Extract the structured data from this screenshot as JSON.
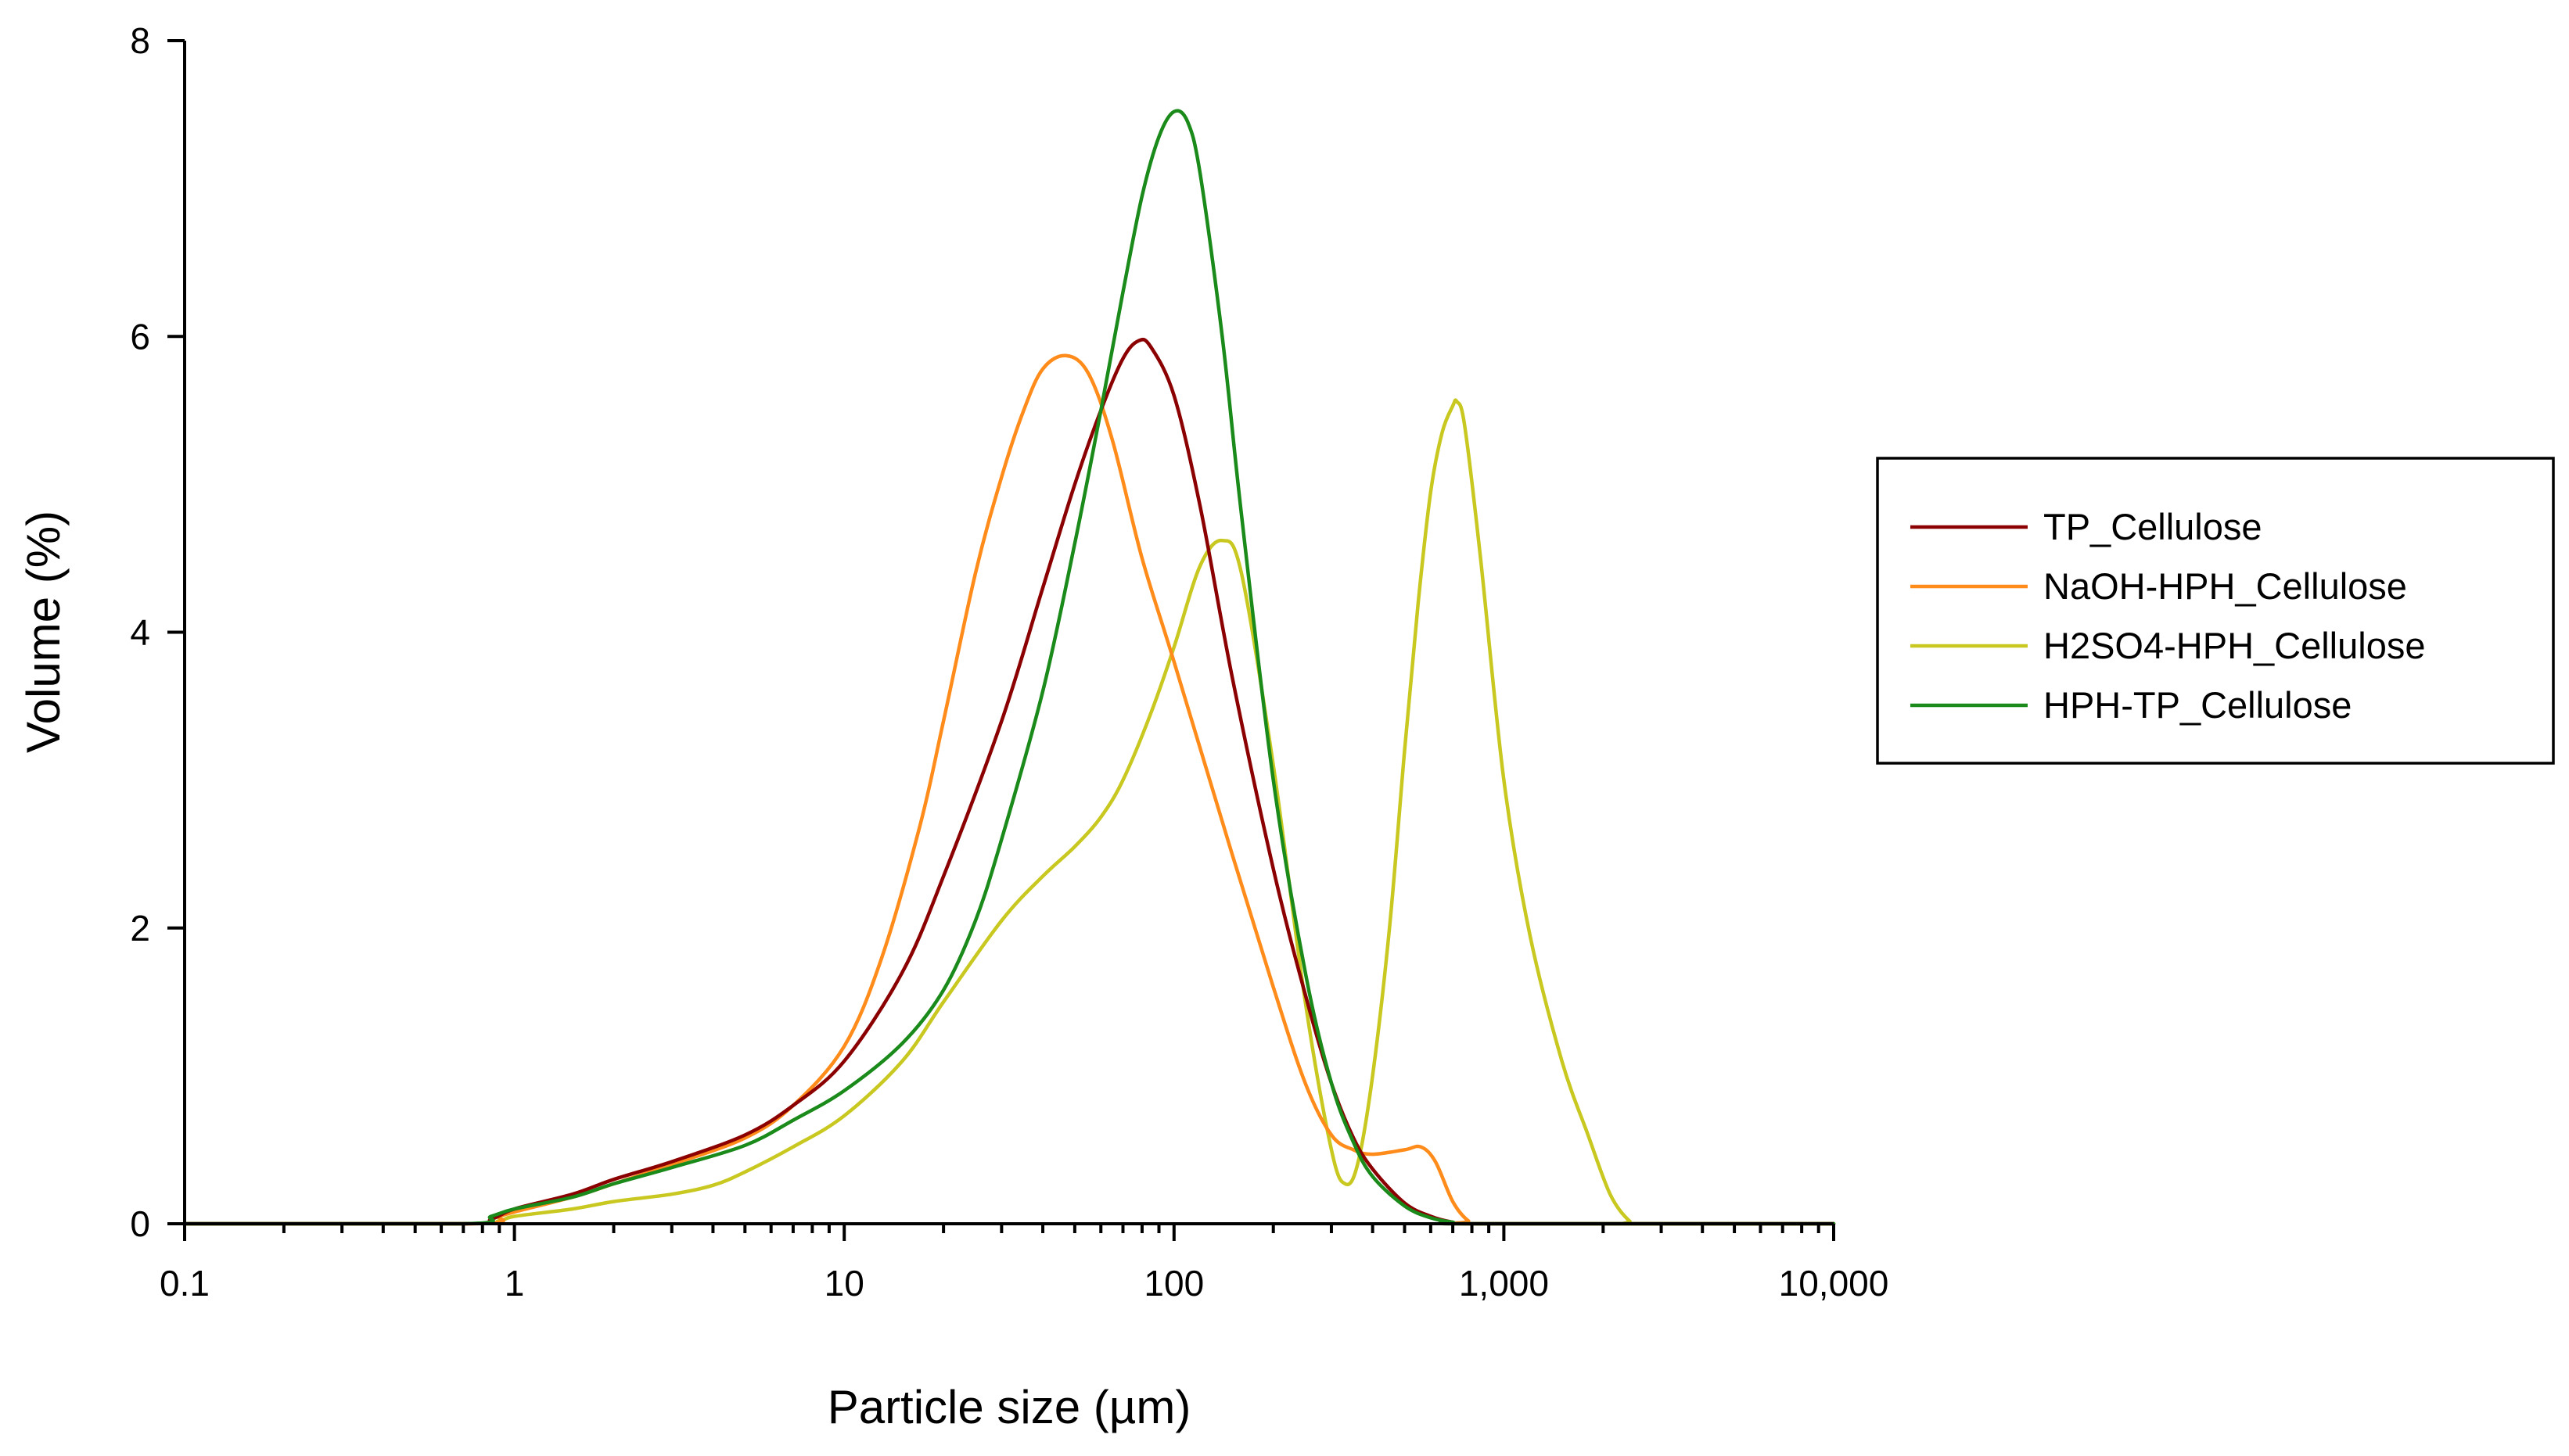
{
  "chart_data": {
    "type": "line",
    "xlabel": "Particle size (µm)",
    "ylabel": "Volume (%)",
    "xscale": "log",
    "xlim": [
      0.1,
      10000
    ],
    "ylim": [
      0,
      8
    ],
    "x_ticks": [
      {
        "value": 0.1,
        "label": "0.1"
      },
      {
        "value": 1,
        "label": "1"
      },
      {
        "value": 10,
        "label": "10"
      },
      {
        "value": 100,
        "label": "100"
      },
      {
        "value": 1000,
        "label": "1,000"
      },
      {
        "value": 10000,
        "label": "10,000"
      }
    ],
    "y_ticks": [
      {
        "value": 0,
        "label": "0"
      },
      {
        "value": 2,
        "label": "2"
      },
      {
        "value": 4,
        "label": "4"
      },
      {
        "value": 6,
        "label": "6"
      },
      {
        "value": 8,
        "label": "8"
      }
    ],
    "grid": false,
    "legend_position": "right",
    "series": [
      {
        "name": "TP_Cellulose",
        "color": "#8b0000",
        "points": [
          [
            0.1,
            0
          ],
          [
            0.7,
            0
          ],
          [
            0.85,
            0.03
          ],
          [
            1,
            0.1
          ],
          [
            1.5,
            0.2
          ],
          [
            2,
            0.3
          ],
          [
            3,
            0.42
          ],
          [
            5,
            0.6
          ],
          [
            7,
            0.8
          ],
          [
            10,
            1.1
          ],
          [
            15,
            1.7
          ],
          [
            20,
            2.35
          ],
          [
            30,
            3.4
          ],
          [
            40,
            4.3
          ],
          [
            50,
            5.0
          ],
          [
            60,
            5.5
          ],
          [
            70,
            5.85
          ],
          [
            78,
            5.97
          ],
          [
            85,
            5.93
          ],
          [
            100,
            5.6
          ],
          [
            120,
            4.85
          ],
          [
            150,
            3.7
          ],
          [
            200,
            2.4
          ],
          [
            250,
            1.55
          ],
          [
            300,
            0.95
          ],
          [
            350,
            0.58
          ],
          [
            400,
            0.37
          ],
          [
            500,
            0.14
          ],
          [
            600,
            0.05
          ],
          [
            700,
            0.01
          ],
          [
            800,
            0
          ],
          [
            10000,
            0
          ]
        ]
      },
      {
        "name": "NaOH-HPH_Cellulose",
        "color": "#ff8c1a",
        "points": [
          [
            0.1,
            0
          ],
          [
            0.75,
            0
          ],
          [
            0.9,
            0.05
          ],
          [
            1,
            0.08
          ],
          [
            1.5,
            0.18
          ],
          [
            2,
            0.27
          ],
          [
            3,
            0.4
          ],
          [
            5,
            0.58
          ],
          [
            7,
            0.8
          ],
          [
            10,
            1.2
          ],
          [
            13,
            1.8
          ],
          [
            17,
            2.7
          ],
          [
            20,
            3.4
          ],
          [
            25,
            4.4
          ],
          [
            30,
            5.05
          ],
          [
            35,
            5.5
          ],
          [
            40,
            5.78
          ],
          [
            47,
            5.87
          ],
          [
            55,
            5.75
          ],
          [
            65,
            5.3
          ],
          [
            80,
            4.5
          ],
          [
            100,
            3.8
          ],
          [
            150,
            2.5
          ],
          [
            200,
            1.6
          ],
          [
            250,
            0.95
          ],
          [
            300,
            0.6
          ],
          [
            350,
            0.5
          ],
          [
            400,
            0.47
          ],
          [
            500,
            0.5
          ],
          [
            560,
            0.52
          ],
          [
            620,
            0.42
          ],
          [
            700,
            0.15
          ],
          [
            780,
            0.02
          ],
          [
            850,
            0
          ],
          [
            10000,
            0
          ]
        ]
      },
      {
        "name": "H2SO4-HPH_Cellulose",
        "color": "#c8c820",
        "points": [
          [
            0.1,
            0
          ],
          [
            0.7,
            0
          ],
          [
            0.9,
            0.02
          ],
          [
            1,
            0.05
          ],
          [
            1.5,
            0.1
          ],
          [
            2,
            0.15
          ],
          [
            3,
            0.2
          ],
          [
            4,
            0.26
          ],
          [
            5,
            0.35
          ],
          [
            7,
            0.52
          ],
          [
            10,
            0.73
          ],
          [
            15,
            1.1
          ],
          [
            20,
            1.5
          ],
          [
            30,
            2.05
          ],
          [
            40,
            2.35
          ],
          [
            50,
            2.55
          ],
          [
            60,
            2.75
          ],
          [
            70,
            3.0
          ],
          [
            85,
            3.45
          ],
          [
            100,
            3.9
          ],
          [
            120,
            4.45
          ],
          [
            140,
            4.62
          ],
          [
            160,
            4.4
          ],
          [
            200,
            3.1
          ],
          [
            250,
            1.5
          ],
          [
            300,
            0.5
          ],
          [
            330,
            0.27
          ],
          [
            360,
            0.4
          ],
          [
            400,
            1.0
          ],
          [
            450,
            2.0
          ],
          [
            500,
            3.2
          ],
          [
            550,
            4.2
          ],
          [
            600,
            4.95
          ],
          [
            650,
            5.35
          ],
          [
            700,
            5.53
          ],
          [
            720,
            5.56
          ],
          [
            760,
            5.4
          ],
          [
            850,
            4.5
          ],
          [
            1000,
            3.0
          ],
          [
            1200,
            1.95
          ],
          [
            1500,
            1.1
          ],
          [
            1800,
            0.6
          ],
          [
            2100,
            0.2
          ],
          [
            2400,
            0.02
          ],
          [
            2600,
            0
          ],
          [
            10000,
            0
          ]
        ]
      },
      {
        "name": "HPH-TP_Cellulose",
        "color": "#1a8a1a",
        "points": [
          [
            0.1,
            0
          ],
          [
            0.7,
            0
          ],
          [
            0.85,
            0.05
          ],
          [
            1,
            0.1
          ],
          [
            1.5,
            0.18
          ],
          [
            2,
            0.27
          ],
          [
            3,
            0.38
          ],
          [
            5,
            0.53
          ],
          [
            7,
            0.7
          ],
          [
            10,
            0.9
          ],
          [
            15,
            1.22
          ],
          [
            20,
            1.58
          ],
          [
            25,
            2.05
          ],
          [
            30,
            2.6
          ],
          [
            40,
            3.6
          ],
          [
            50,
            4.6
          ],
          [
            60,
            5.5
          ],
          [
            70,
            6.3
          ],
          [
            80,
            6.95
          ],
          [
            90,
            7.35
          ],
          [
            100,
            7.52
          ],
          [
            110,
            7.45
          ],
          [
            120,
            7.1
          ],
          [
            140,
            6.0
          ],
          [
            160,
            4.8
          ],
          [
            200,
            3.0
          ],
          [
            250,
            1.7
          ],
          [
            300,
            0.95
          ],
          [
            350,
            0.55
          ],
          [
            400,
            0.32
          ],
          [
            500,
            0.12
          ],
          [
            600,
            0.04
          ],
          [
            700,
            0.01
          ],
          [
            800,
            0
          ],
          [
            10000,
            0
          ]
        ]
      }
    ]
  }
}
